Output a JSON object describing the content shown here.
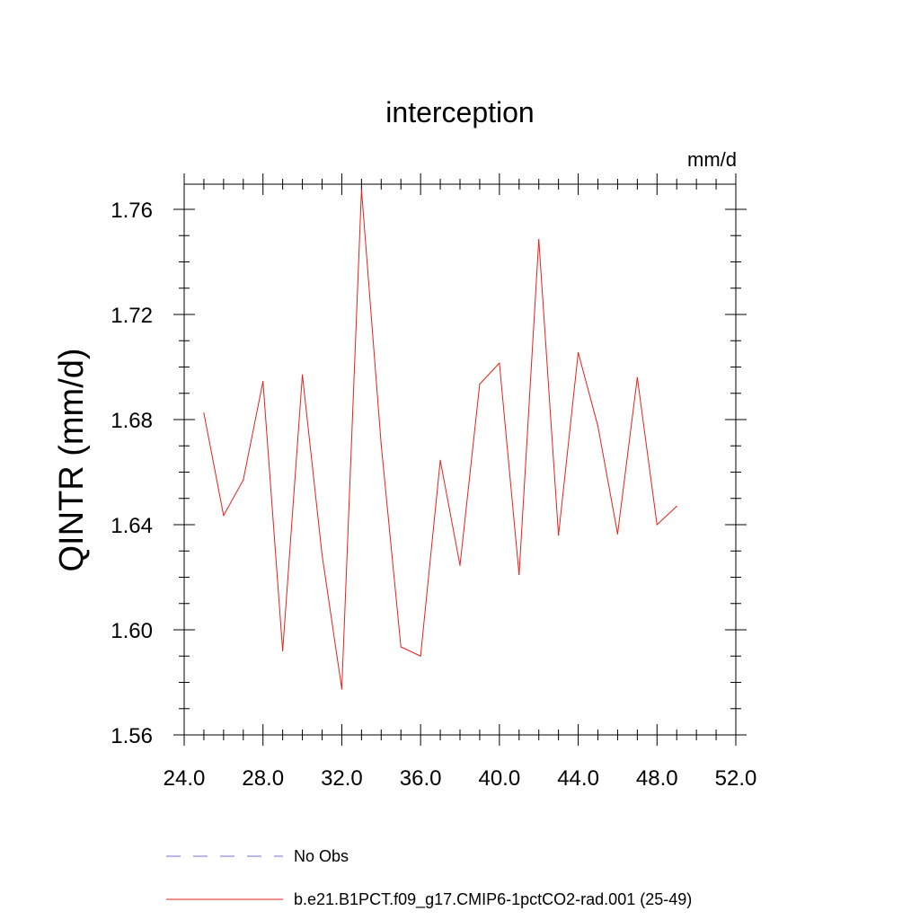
{
  "chart_data": {
    "type": "line",
    "title": "interception",
    "units_label": "mm/d",
    "ylabel": "QINTR  (mm/d)",
    "xlabel": "",
    "xlim": [
      24,
      52
    ],
    "ylim": [
      1.56,
      1.77
    ],
    "x_ticks": [
      "24.0",
      "28.0",
      "32.0",
      "36.0",
      "40.0",
      "44.0",
      "48.0",
      "52.0"
    ],
    "y_ticks": [
      "1.56",
      "1.60",
      "1.64",
      "1.68",
      "1.72",
      "1.76"
    ],
    "grid": false,
    "legend_position": "bottom",
    "series": [
      {
        "name": "b.e21.B1PCT.f09_g17.CMIP6-1pctCO2-rad.001 (25-49)",
        "color": "#e8201a",
        "x": [
          25,
          26,
          27,
          28,
          29,
          30,
          31,
          32,
          33,
          34,
          35,
          36,
          37,
          38,
          39,
          40,
          41,
          42,
          43,
          44,
          45,
          46,
          47,
          48,
          49
        ],
        "y": [
          1.6825,
          1.6435,
          1.657,
          1.6945,
          1.592,
          1.697,
          1.6285,
          1.5775,
          1.7675,
          1.6705,
          1.5935,
          1.59,
          1.6645,
          1.6245,
          1.6935,
          1.7015,
          1.621,
          1.7485,
          1.636,
          1.7055,
          1.6775,
          1.6365,
          1.696,
          1.64,
          1.647
        ]
      }
    ],
    "legend": [
      {
        "label": "No Obs",
        "color": "#7070c8",
        "style": "dashed"
      },
      {
        "label": "b.e21.B1PCT.f09_g17.CMIP6-1pctCO2-rad.001 (25-49)",
        "color": "#e8201a",
        "style": "solid"
      }
    ]
  }
}
